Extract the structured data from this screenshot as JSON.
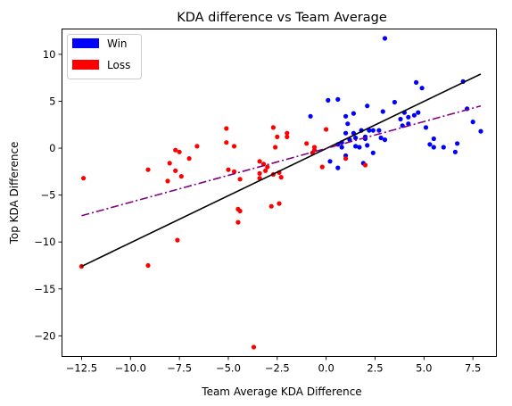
{
  "chart_data": {
    "type": "scatter",
    "title": "KDA difference vs Team Average",
    "xlabel": "Team Average KDA Difference",
    "ylabel": "Top KDA Difference",
    "xlim": [
      -13.5,
      8.7
    ],
    "ylim": [
      -22.2,
      12.7
    ],
    "xticks": [
      -12.5,
      -10.0,
      -7.5,
      -5.0,
      -2.5,
      0.0,
      2.5,
      5.0,
      7.5
    ],
    "xtick_labels": [
      "−12.5",
      "−10.0",
      "−7.5",
      "−5.0",
      "−2.5",
      "0.0",
      "2.5",
      "5.0",
      "7.5"
    ],
    "yticks": [
      -20,
      -15,
      -10,
      -5,
      0,
      5,
      10
    ],
    "ytick_labels": [
      "−20",
      "−15",
      "−10",
      "−5",
      "0",
      "5",
      "10"
    ],
    "grid": false,
    "legend": {
      "position": "top-left",
      "entries": [
        {
          "label": "Win",
          "color": "#0000ff"
        },
        {
          "label": "Loss",
          "color": "#ff0000"
        }
      ]
    },
    "series": [
      {
        "name": "Win",
        "color": "#0000ff",
        "points": [
          [
            3.0,
            11.7
          ],
          [
            7.0,
            7.1
          ],
          [
            4.6,
            7.0
          ],
          [
            4.9,
            6.4
          ],
          [
            2.1,
            4.5
          ],
          [
            0.6,
            5.2
          ],
          [
            0.1,
            5.1
          ],
          [
            -0.8,
            3.4
          ],
          [
            1.0,
            3.4
          ],
          [
            1.4,
            3.7
          ],
          [
            2.9,
            3.9
          ],
          [
            4.7,
            3.8
          ],
          [
            4.0,
            3.8
          ],
          [
            7.2,
            4.2
          ],
          [
            3.5,
            4.9
          ],
          [
            4.5,
            3.5
          ],
          [
            4.2,
            3.3
          ],
          [
            3.8,
            3.1
          ],
          [
            3.9,
            2.4
          ],
          [
            7.5,
            2.8
          ],
          [
            5.1,
            2.2
          ],
          [
            2.2,
            1.9
          ],
          [
            2.4,
            1.9
          ],
          [
            2.7,
            1.9
          ],
          [
            1.8,
            1.9
          ],
          [
            1.0,
            1.6
          ],
          [
            1.4,
            1.6
          ],
          [
            2.0,
            1.2
          ],
          [
            1.5,
            1.1
          ],
          [
            2.8,
            1.1
          ],
          [
            3.0,
            0.9
          ],
          [
            1.2,
            0.9
          ],
          [
            2.0,
            1.0
          ],
          [
            5.5,
            1.0
          ],
          [
            0.6,
            0.4
          ],
          [
            0.8,
            0.1
          ],
          [
            1.5,
            0.2
          ],
          [
            1.7,
            0.1
          ],
          [
            2.1,
            0.3
          ],
          [
            5.3,
            0.4
          ],
          [
            5.5,
            0.1
          ],
          [
            6.0,
            0.1
          ],
          [
            6.7,
            0.5
          ],
          [
            6.6,
            -0.4
          ],
          [
            2.4,
            -0.5
          ],
          [
            1.0,
            -0.8
          ],
          [
            0.2,
            -1.4
          ],
          [
            0.6,
            -2.1
          ],
          [
            1.9,
            -1.6
          ],
          [
            7.9,
            1.8
          ],
          [
            0.8,
            0.6
          ],
          [
            1.1,
            2.6
          ],
          [
            4.2,
            2.6
          ]
        ]
      },
      {
        "name": "Loss",
        "color": "#ff0000",
        "points": [
          [
            0.0,
            2.0
          ],
          [
            -2.0,
            1.6
          ],
          [
            -2.0,
            1.2
          ],
          [
            -2.5,
            1.2
          ],
          [
            -2.7,
            2.2
          ],
          [
            -5.1,
            2.1
          ],
          [
            -5.1,
            0.6
          ],
          [
            -6.6,
            0.2
          ],
          [
            -7.7,
            -0.2
          ],
          [
            -7.5,
            -0.4
          ],
          [
            -4.7,
            0.2
          ],
          [
            -2.6,
            0.1
          ],
          [
            -1.0,
            0.5
          ],
          [
            -0.6,
            0.1
          ],
          [
            -0.6,
            -0.2
          ],
          [
            -0.7,
            -0.5
          ],
          [
            -0.2,
            -2.0
          ],
          [
            1.0,
            -1.1
          ],
          [
            2.0,
            -1.8
          ],
          [
            -7.0,
            -1.1
          ],
          [
            -8.0,
            -1.6
          ],
          [
            -7.7,
            -2.4
          ],
          [
            -9.1,
            -2.3
          ],
          [
            -4.7,
            -2.5
          ],
          [
            -5.0,
            -2.3
          ],
          [
            -3.2,
            -1.7
          ],
          [
            -3.0,
            -2.0
          ],
          [
            -3.1,
            -2.4
          ],
          [
            -3.4,
            -1.4
          ],
          [
            -3.4,
            -2.7
          ],
          [
            -3.4,
            -3.2
          ],
          [
            -2.7,
            -2.8
          ],
          [
            -2.4,
            -2.6
          ],
          [
            -2.3,
            -3.1
          ],
          [
            -7.4,
            -3.0
          ],
          [
            -8.1,
            -3.5
          ],
          [
            -4.4,
            -3.3
          ],
          [
            -12.4,
            -3.2
          ],
          [
            -4.5,
            -6.5
          ],
          [
            -4.4,
            -6.7
          ],
          [
            -2.4,
            -5.9
          ],
          [
            -2.8,
            -6.2
          ],
          [
            -4.5,
            -7.9
          ],
          [
            -7.6,
            -9.8
          ],
          [
            -12.5,
            -12.6
          ],
          [
            -9.1,
            -12.5
          ],
          [
            -3.7,
            -21.2
          ]
        ]
      }
    ],
    "lines": [
      {
        "from": [
          -12.5,
          -12.6
        ],
        "to": [
          7.9,
          7.9
        ],
        "color": "#000000",
        "style": "solid"
      },
      {
        "from": [
          -12.5,
          -7.2
        ],
        "to": [
          7.9,
          4.5
        ],
        "color": "#800080",
        "style": "dashdot"
      }
    ]
  }
}
